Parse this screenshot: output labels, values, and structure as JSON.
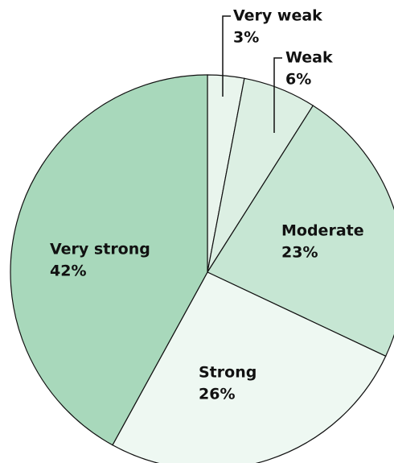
{
  "chart_data": {
    "type": "pie",
    "categories": [
      "Very weak",
      "Weak",
      "Moderate",
      "Strong",
      "Very strong"
    ],
    "values": [
      3,
      6,
      23,
      26,
      42
    ],
    "value_labels": [
      "3%",
      "6%",
      "23%",
      "26%",
      "42%"
    ],
    "colors": [
      "#e9f5ed",
      "#dcefe3",
      "#c6e6d3",
      "#eef8f2",
      "#a8d8bb"
    ]
  }
}
